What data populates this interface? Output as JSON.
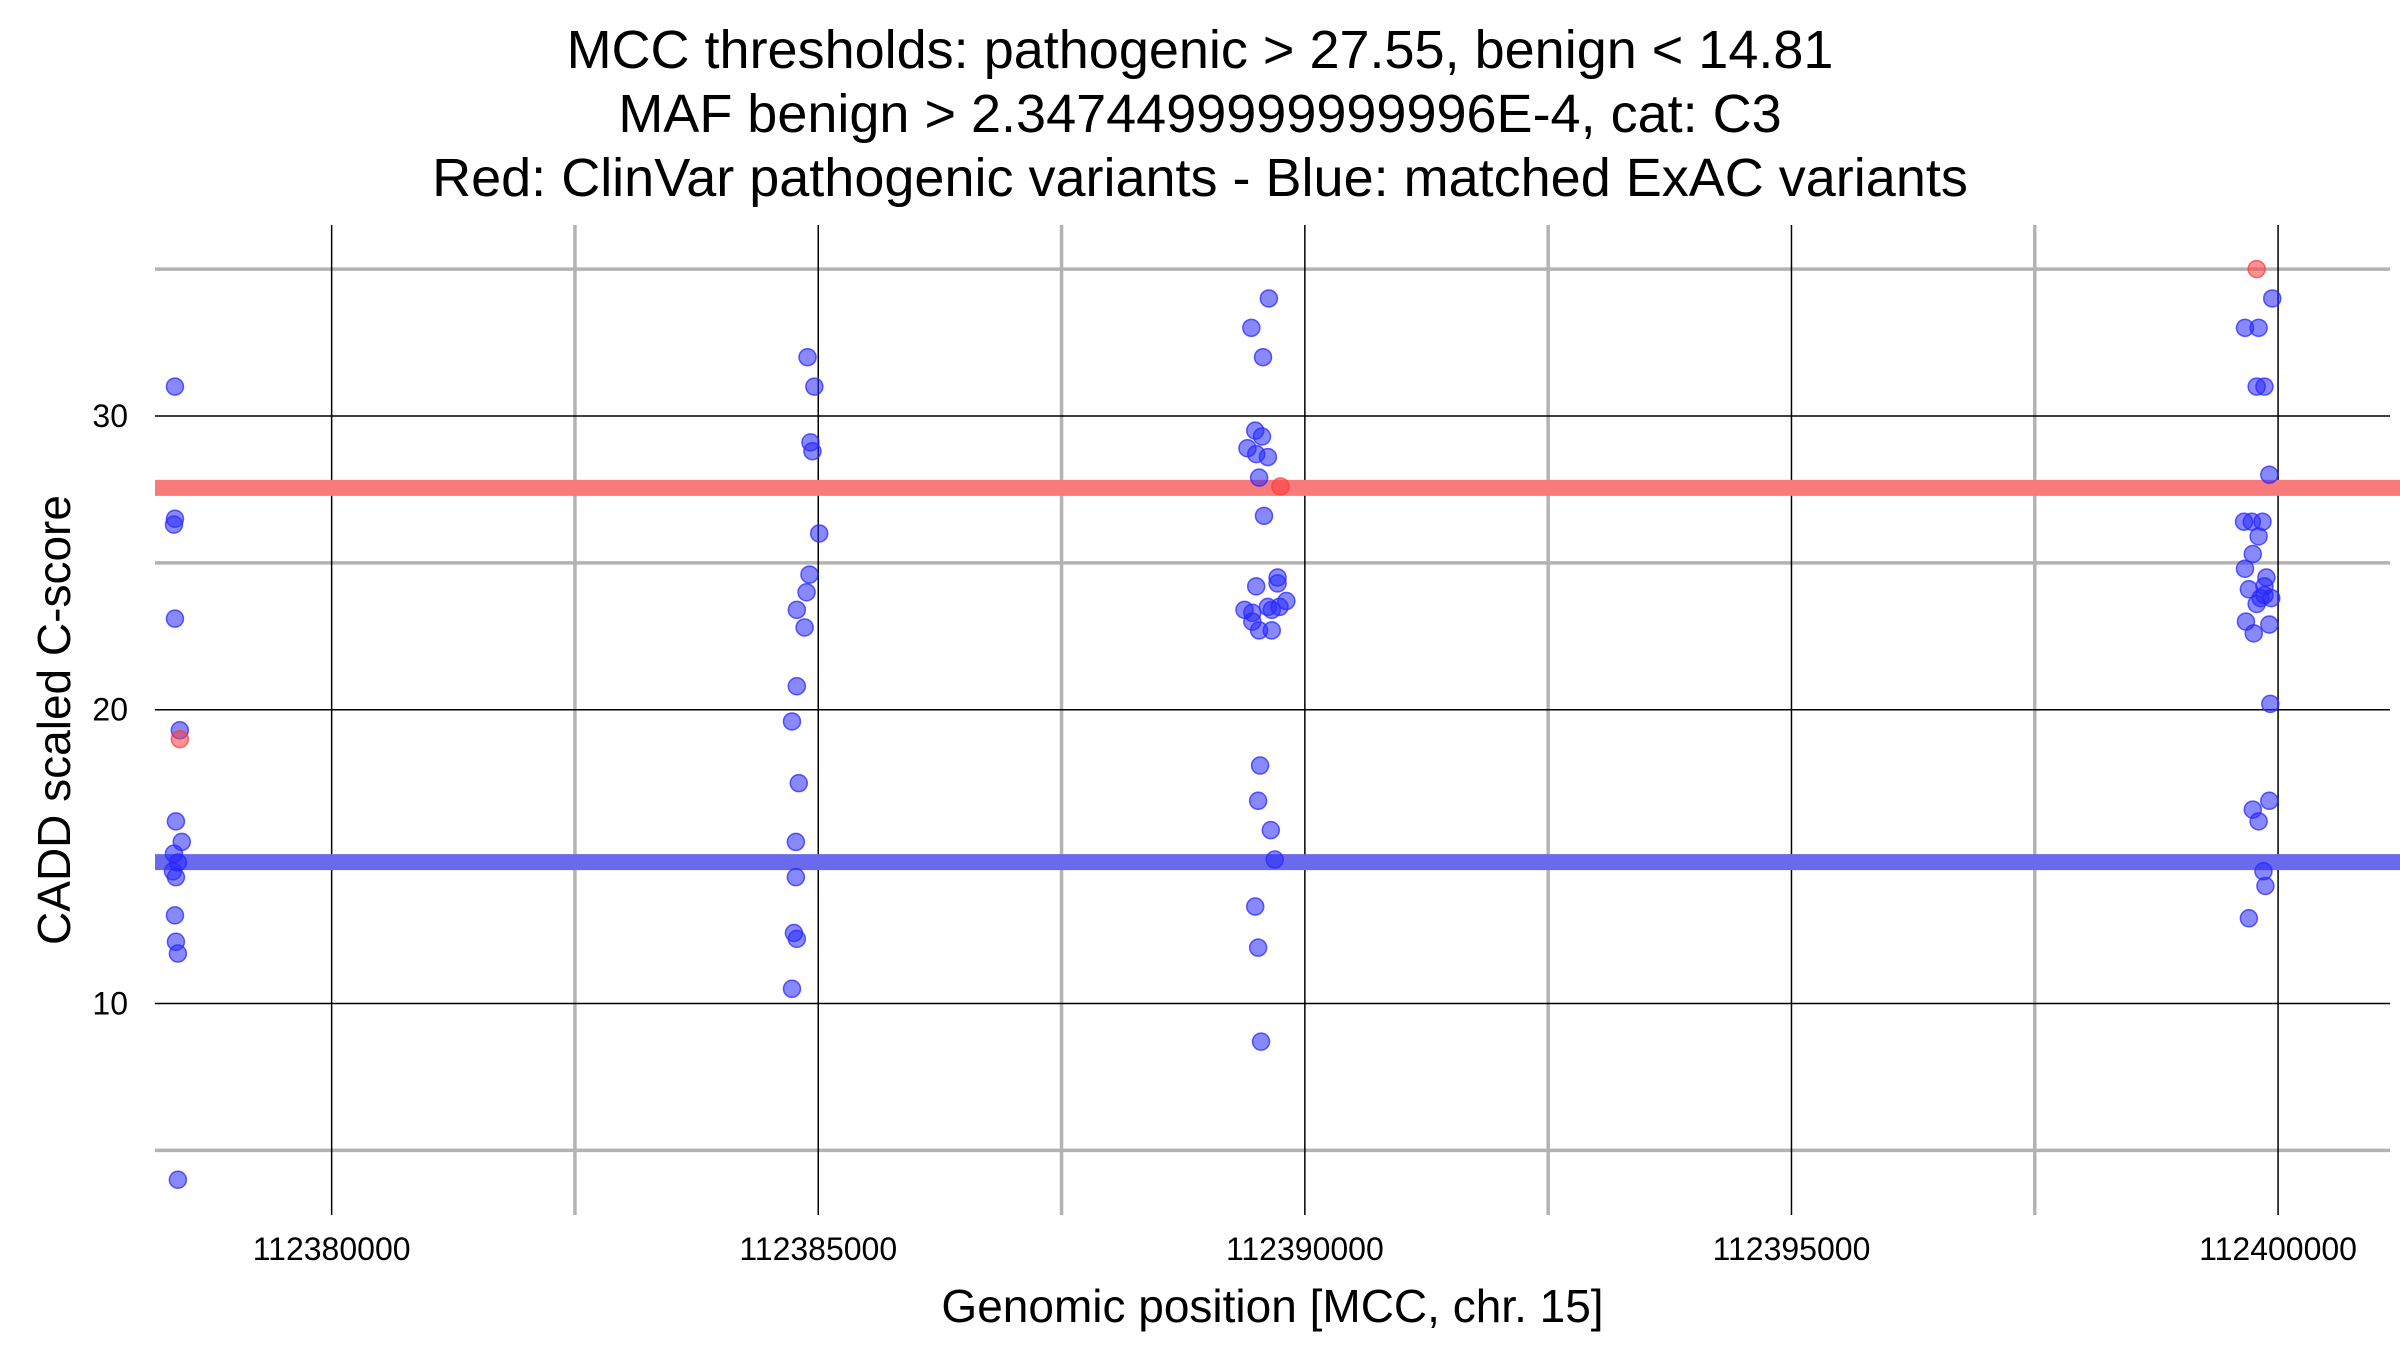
{
  "chart_data": {
    "type": "scatter",
    "title_lines": [
      "MCC thresholds: pathogenic > 27.55, benign < 14.81",
      "MAF benign > 2.3474499999999996E-4, cat: C3",
      "Red: ClinVar pathogenic variants - Blue: matched ExAC variants"
    ],
    "xlabel": "Genomic position [MCC, chr. 15]",
    "ylabel": "CADD scaled C-score",
    "xlim": [
      112378185,
      112401150
    ],
    "ylim": [
      2.8,
      36.5
    ],
    "x_ticks": [
      112380000,
      112385000,
      112390000,
      112395000,
      112400000
    ],
    "x_tick_labels": [
      "112380000",
      "112385000",
      "112390000",
      "112395000",
      "112400000"
    ],
    "x_minor": [
      112382500,
      112387500,
      112392500,
      112397500
    ],
    "y_ticks": [
      10,
      20,
      30
    ],
    "y_tick_labels": [
      "10",
      "20",
      "30"
    ],
    "y_minor": [
      5,
      15,
      25,
      35
    ],
    "grid": true,
    "thresholds": [
      {
        "value": 27.55,
        "color": "#f87a7a"
      },
      {
        "value": 14.81,
        "color": "#6a6aee"
      }
    ],
    "colors": {
      "pathogenic": "#ff3b3b",
      "benign": "#2828ff",
      "major_grid": "#000000",
      "minor_grid": "#b3b3b3"
    },
    "series": [
      {
        "class": "pathogenic",
        "points": [
          [
            112378440,
            19.0
          ],
          [
            112389750,
            27.6
          ],
          [
            112399780,
            35.0
          ]
        ]
      },
      {
        "class": "benign",
        "points": [
          [
            112378390,
            31.0
          ],
          [
            112378390,
            26.5
          ],
          [
            112378380,
            26.3
          ],
          [
            112378390,
            23.1
          ],
          [
            112378440,
            19.3
          ],
          [
            112378400,
            16.2
          ],
          [
            112378460,
            15.5
          ],
          [
            112378380,
            15.1
          ],
          [
            112378420,
            14.8
          ],
          [
            112378370,
            14.5
          ],
          [
            112378400,
            14.3
          ],
          [
            112378390,
            13.0
          ],
          [
            112378400,
            12.1
          ],
          [
            112378420,
            11.7
          ],
          [
            112378420,
            4.0
          ],
          [
            112384890,
            32.0
          ],
          [
            112384960,
            31.0
          ],
          [
            112384920,
            29.1
          ],
          [
            112384940,
            28.8
          ],
          [
            112385010,
            26.0
          ],
          [
            112384910,
            24.6
          ],
          [
            112384880,
            24.0
          ],
          [
            112384780,
            23.4
          ],
          [
            112384860,
            22.8
          ],
          [
            112384780,
            20.8
          ],
          [
            112384730,
            19.6
          ],
          [
            112384800,
            17.5
          ],
          [
            112384770,
            15.5
          ],
          [
            112384770,
            14.3
          ],
          [
            112384750,
            12.4
          ],
          [
            112384780,
            12.2
          ],
          [
            112384730,
            10.5
          ],
          [
            112389450,
            33.0
          ],
          [
            112389630,
            34.0
          ],
          [
            112389570,
            32.0
          ],
          [
            112389490,
            29.5
          ],
          [
            112389560,
            29.3
          ],
          [
            112389410,
            28.9
          ],
          [
            112389500,
            28.7
          ],
          [
            112389620,
            28.6
          ],
          [
            112389530,
            27.9
          ],
          [
            112389580,
            26.6
          ],
          [
            112389720,
            24.5
          ],
          [
            112389720,
            24.3
          ],
          [
            112389500,
            24.2
          ],
          [
            112389810,
            23.7
          ],
          [
            112389380,
            23.4
          ],
          [
            112389460,
            23.3
          ],
          [
            112389620,
            23.5
          ],
          [
            112389740,
            23.5
          ],
          [
            112389660,
            23.4
          ],
          [
            112389460,
            23.0
          ],
          [
            112389530,
            22.7
          ],
          [
            112389660,
            22.7
          ],
          [
            112389540,
            18.1
          ],
          [
            112389520,
            16.9
          ],
          [
            112389650,
            15.9
          ],
          [
            112389690,
            14.9
          ],
          [
            112389490,
            13.3
          ],
          [
            112389520,
            11.9
          ],
          [
            112389550,
            8.7
          ],
          [
            112399940,
            34.0
          ],
          [
            112399660,
            33.0
          ],
          [
            112399800,
            33.0
          ],
          [
            112399780,
            31.0
          ],
          [
            112399860,
            31.0
          ],
          [
            112399910,
            28.0
          ],
          [
            112399650,
            26.4
          ],
          [
            112399730,
            26.4
          ],
          [
            112399840,
            26.4
          ],
          [
            112399800,
            25.9
          ],
          [
            112399740,
            25.3
          ],
          [
            112399660,
            24.8
          ],
          [
            112399880,
            24.5
          ],
          [
            112399860,
            24.2
          ],
          [
            112399700,
            24.1
          ],
          [
            112399820,
            23.8
          ],
          [
            112399930,
            23.8
          ],
          [
            112399860,
            23.9
          ],
          [
            112399780,
            23.6
          ],
          [
            112399670,
            23.0
          ],
          [
            112399910,
            22.9
          ],
          [
            112399750,
            22.6
          ],
          [
            112399920,
            20.2
          ],
          [
            112399910,
            16.9
          ],
          [
            112399740,
            16.6
          ],
          [
            112399800,
            16.2
          ],
          [
            112399850,
            14.5
          ],
          [
            112399870,
            14.0
          ],
          [
            112399700,
            12.9
          ]
        ]
      }
    ]
  }
}
